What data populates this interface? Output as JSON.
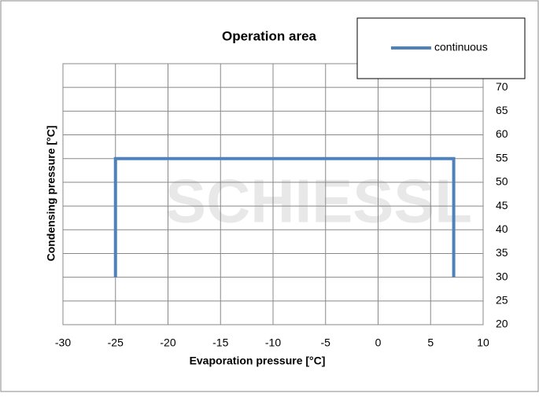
{
  "chart_data": {
    "type": "line",
    "title": "Operation area",
    "x_label": "Evaporation pressure [°C]",
    "y_label": "Condensing pressure [°C]",
    "watermark": "SCHIESSL",
    "series": [
      {
        "name": "continuous",
        "color": "#4f81bd",
        "x": [
          -25,
          -25,
          7.2,
          7.2
        ],
        "values": [
          30,
          55,
          55,
          30
        ]
      }
    ],
    "xlim": [
      -30,
      10
    ],
    "xticks": [
      -30,
      -25,
      -20,
      -15,
      -10,
      -5,
      0,
      5,
      10
    ],
    "ylim": [
      20,
      75
    ],
    "yticks": [
      20,
      25,
      30,
      35,
      40,
      45,
      50,
      55,
      60,
      65,
      70
    ],
    "grid": true,
    "legend": "top-right"
  }
}
